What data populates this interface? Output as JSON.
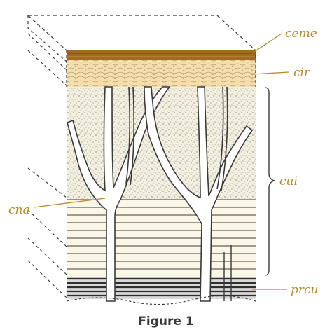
{
  "labels": {
    "ceme": "ceme",
    "cir": "cir",
    "cui": "cui",
    "cna": "cna",
    "prcu": "prcu"
  },
  "caption": "Figure 1",
  "colors": {
    "ceme_band": "#a26a1e",
    "cir_band": "#f6dfac",
    "label_text": "#b8892c",
    "stipple_bg": "#f4f0e0",
    "line": "#3a3a3a",
    "prcu_band": "#2e2e2e"
  }
}
